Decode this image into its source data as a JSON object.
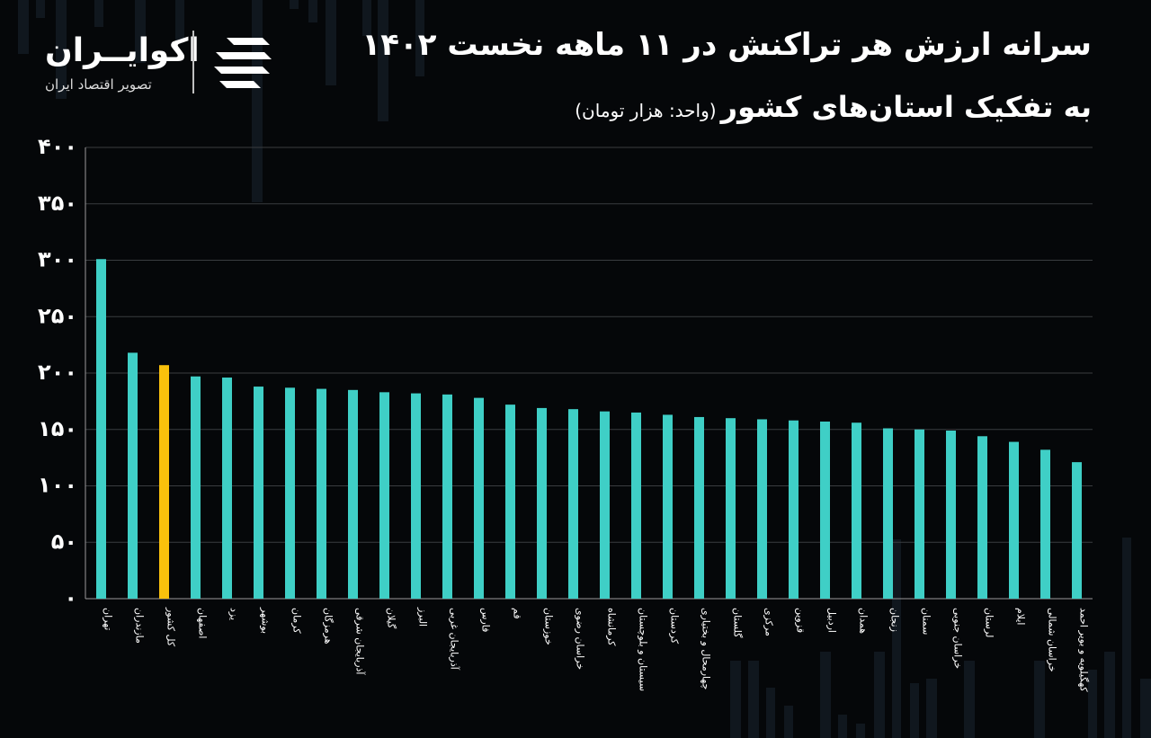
{
  "header": {
    "title_line1": "سرانه ارزش هر تراکنش در ۱۱ ماهه نخست ۱۴۰۲",
    "title_line2_main": "به تفکیک استان‌های کشور",
    "title_line2_unit": "(واحد: هزار تومان)"
  },
  "logo": {
    "name": "اکوایــران",
    "tagline": "تصویر اقتصاد ایران",
    "icon": "ecoiran-logo-icon"
  },
  "colors": {
    "background": "#050709",
    "bar": "#3fcfc6",
    "highlight": "#f9c10c",
    "grid": "#3a3d40",
    "axis": "#9a9a9a"
  },
  "chart_data": {
    "type": "bar",
    "title": "سرانه ارزش هر تراکنش در ۱۱ ماهه نخست ۱۴۰۲",
    "subtitle": "به تفکیک استان‌های کشور (واحد: هزار تومان)",
    "ylim": [
      0,
      400
    ],
    "yticks": [
      0,
      50,
      100,
      150,
      200,
      250,
      300,
      350,
      400
    ],
    "ytick_labels": [
      "۰",
      "۵۰",
      "۱۰۰",
      "۱۵۰",
      "۲۰۰",
      "۲۵۰",
      "۳۰۰",
      "۳۵۰",
      "۴۰۰"
    ],
    "grid": true,
    "categories": [
      "تهران",
      "مازندران",
      "کل کشور",
      "اصفهان",
      "یزد",
      "بوشهر",
      "کرمان",
      "هرمزگان",
      "آذربایجان شرقی",
      "گیلان",
      "البرز",
      "آذربایجان غربی",
      "فارس",
      "قم",
      "خوزستان",
      "خراسان رضوی",
      "کرمانشاه",
      "سیستان و بلوچستان",
      "کردستان",
      "چهارمحال و بختیاری",
      "گلستان",
      "مرکزی",
      "قزوین",
      "اردبیل",
      "همدان",
      "زنجان",
      "سمنان",
      "خراسان جنوبی",
      "لرستان",
      "ایلام",
      "خراسان شمالی",
      "کهگیلویه و بویر احمد"
    ],
    "values": [
      301,
      218,
      207,
      197,
      196,
      188,
      187,
      186,
      185,
      183,
      182,
      181,
      178,
      172,
      169,
      168,
      166,
      165,
      163,
      161,
      160,
      159,
      158,
      157,
      156,
      151,
      150,
      149,
      144,
      139,
      132,
      121
    ],
    "highlight_index": 2
  }
}
